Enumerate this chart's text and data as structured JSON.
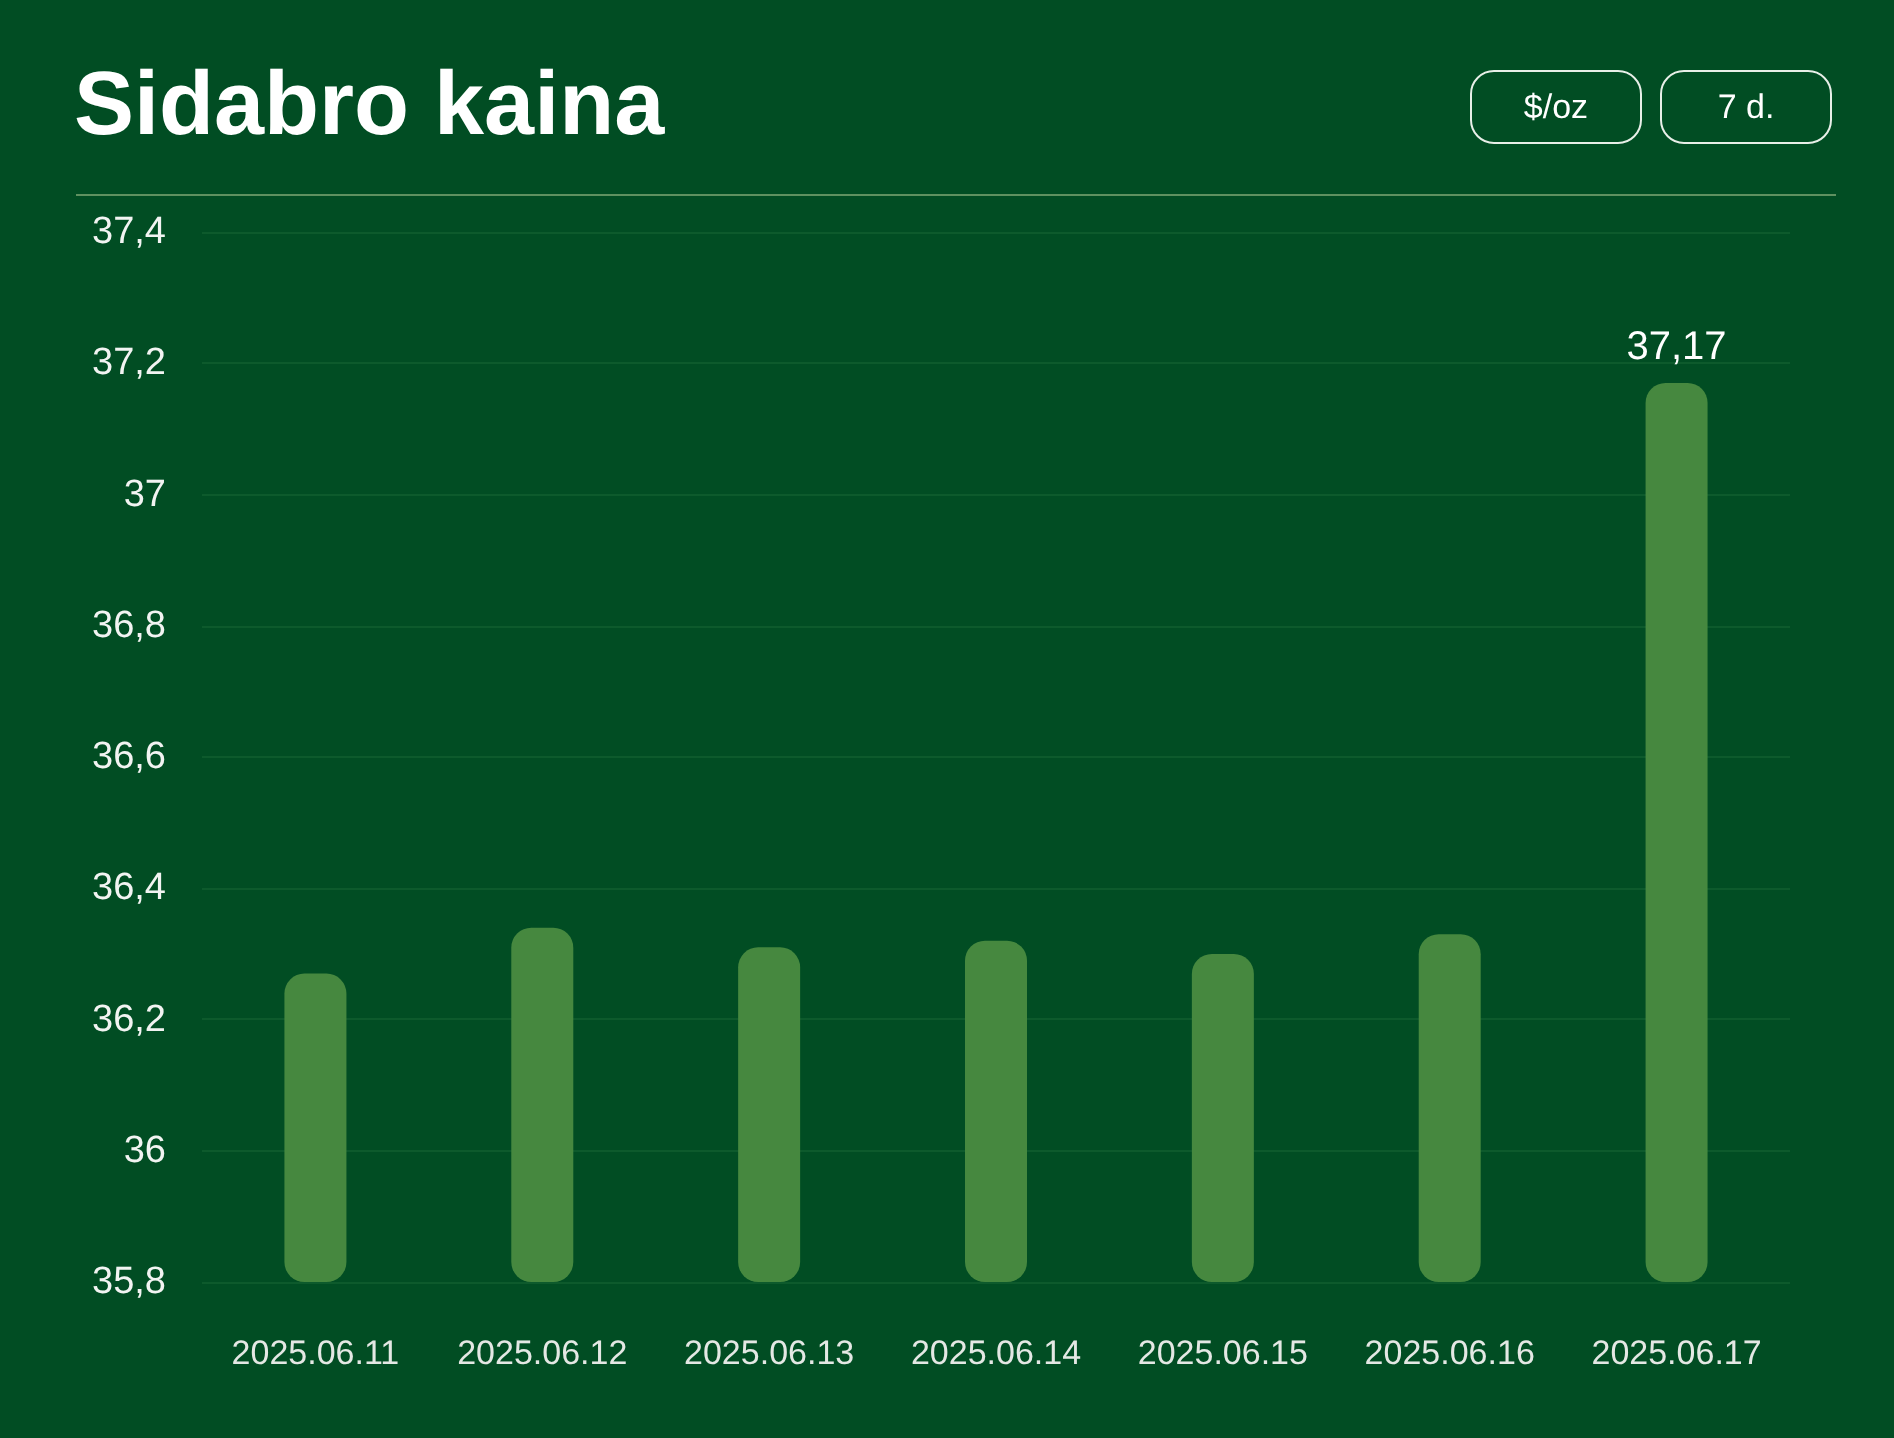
{
  "chart_data": {
    "type": "bar",
    "title": "Sidabro kaina",
    "annotations": [
      "$/oz",
      "7 d."
    ],
    "categories": [
      "2025.06.11",
      "2025.06.12",
      "2025.06.13",
      "2025.06.14",
      "2025.06.15",
      "2025.06.16",
      "2025.06.17"
    ],
    "values": [
      36.27,
      36.34,
      36.31,
      36.32,
      36.3,
      36.33,
      37.17
    ],
    "color": "#46883f",
    "value_labels": [
      null,
      null,
      null,
      null,
      null,
      null,
      "37,17"
    ],
    "ylim": [
      35.8,
      37.4
    ],
    "yticks": [
      {
        "value": 35.8,
        "label": "35,8"
      },
      36,
      {
        "value": 36.2,
        "label": "36,2"
      },
      {
        "value": 36.4,
        "label": "36,4"
      },
      {
        "value": 36.6,
        "label": "36,6"
      },
      {
        "value": 36.8,
        "label": "36,8"
      },
      37,
      {
        "value": 37.2,
        "label": "37,2"
      },
      {
        "value": 37.4,
        "label": "37,4"
      }
    ],
    "grid": "y"
  }
}
